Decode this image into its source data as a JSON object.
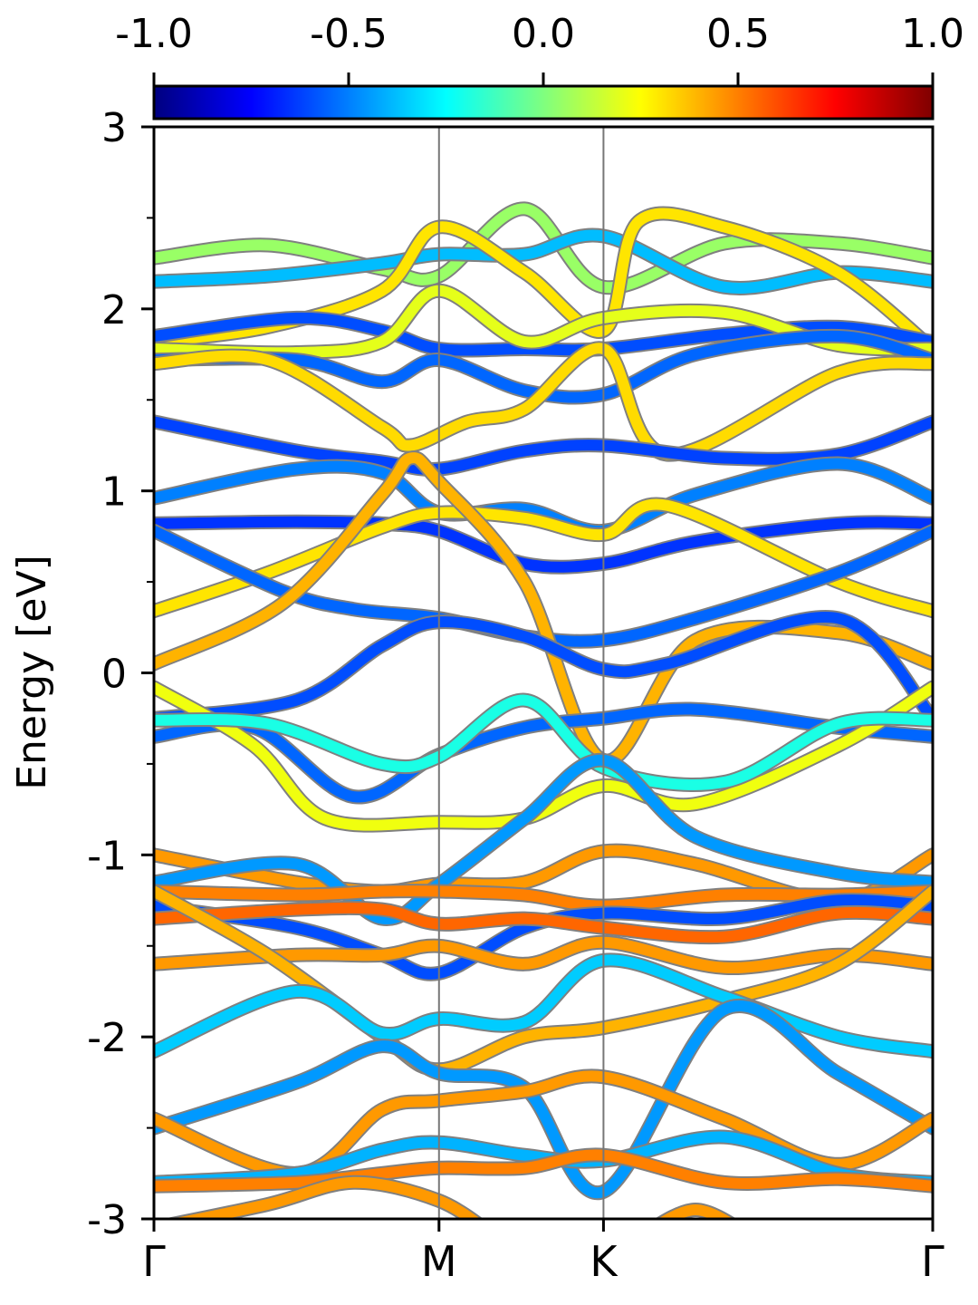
{
  "chart_data": {
    "type": "line",
    "title": "",
    "xlabel": "",
    "ylabel": "Energy [eV]",
    "ylim": [
      -3,
      3
    ],
    "grid": false,
    "kpath": {
      "labels": [
        "Γ",
        "M",
        "K",
        "Γ"
      ],
      "positions": [
        0,
        1,
        1.577,
        2.732
      ],
      "xlim": [
        0,
        2.732
      ]
    },
    "yticks": [
      -3,
      -2,
      -1,
      0,
      1,
      2,
      3
    ],
    "ytick_labels": [
      "-3",
      "-2",
      "-1",
      "0",
      "1",
      "2",
      "3"
    ],
    "colorbar": {
      "colormap": "jet",
      "range": [
        -1.0,
        1.0
      ],
      "ticks": [
        -1.0,
        -0.5,
        0.0,
        0.5,
        1.0
      ],
      "tick_labels": [
        "-1.0",
        "-0.5",
        "0.0",
        "0.5",
        "1.0"
      ],
      "stops": [
        "#00007f",
        "#0000ff",
        "#007fff",
        "#00ffff",
        "#7fff7f",
        "#ffff00",
        "#ff7f00",
        "#ff0000",
        "#7f0000"
      ]
    },
    "series": [
      {
        "x": [
          0,
          0.4,
          0.8,
          1,
          1.3,
          1.577,
          2,
          2.4,
          2.732
        ],
        "y": [
          2.28,
          2.35,
          2.22,
          2.18,
          2.55,
          2.12,
          2.36,
          2.36,
          2.28
        ],
        "w": 0.05
      },
      {
        "x": [
          0,
          0.4,
          0.8,
          1,
          1.3,
          1.577,
          2,
          2.4,
          2.732
        ],
        "y": [
          2.15,
          2.18,
          2.25,
          2.3,
          2.3,
          2.4,
          2.12,
          2.2,
          2.15
        ],
        "w": -0.38
      },
      {
        "x": [
          0,
          0.4,
          0.8,
          1,
          1.3,
          1.577,
          1.7,
          2,
          2.4,
          2.732
        ],
        "y": [
          1.82,
          1.9,
          2.1,
          2.45,
          2.2,
          1.88,
          2.48,
          2.45,
          2.2,
          1.78
        ],
        "w": 0.3
      },
      {
        "x": [
          0,
          0.5,
          0.8,
          1,
          1.3,
          1.577,
          2,
          2.4,
          2.732
        ],
        "y": [
          1.85,
          1.95,
          1.88,
          1.78,
          1.78,
          1.78,
          1.86,
          1.9,
          1.82
        ],
        "w": -0.6
      },
      {
        "x": [
          0,
          0.5,
          0.8,
          1,
          1.3,
          1.577,
          2,
          2.4,
          2.732
        ],
        "y": [
          1.78,
          1.76,
          1.82,
          2.1,
          1.82,
          1.95,
          1.98,
          1.8,
          1.78
        ],
        "w": 0.2
      },
      {
        "x": [
          0,
          0.5,
          0.8,
          1,
          1.3,
          1.577,
          1.9,
          2.4,
          2.732
        ],
        "y": [
          1.72,
          1.72,
          1.6,
          1.72,
          1.55,
          1.53,
          1.75,
          1.85,
          1.72
        ],
        "w": -0.55
      },
      {
        "x": [
          0,
          0.4,
          0.8,
          0.9,
          1.1,
          1.3,
          1.577,
          1.8,
          2.4,
          2.732
        ],
        "y": [
          1.7,
          1.72,
          1.35,
          1.25,
          1.38,
          1.45,
          1.78,
          1.2,
          1.65,
          1.7
        ],
        "w": 0.32
      },
      {
        "x": [
          0,
          0.5,
          0.8,
          1,
          1.3,
          1.577,
          2,
          2.4,
          2.732
        ],
        "y": [
          1.38,
          1.22,
          1.16,
          1.12,
          1.22,
          1.25,
          1.18,
          1.2,
          1.38
        ],
        "w": -0.62
      },
      {
        "x": [
          0,
          0.5,
          0.8,
          1,
          1.3,
          1.577,
          1.9,
          2.4,
          2.732
        ],
        "y": [
          0.96,
          1.12,
          1.1,
          0.88,
          0.9,
          0.78,
          0.98,
          1.15,
          0.96
        ],
        "w": -0.5
      },
      {
        "x": [
          0,
          0.5,
          0.8,
          1,
          1.3,
          1.577,
          1.9,
          2.4,
          2.732
        ],
        "y": [
          0.82,
          0.83,
          0.82,
          0.78,
          0.6,
          0.6,
          0.72,
          0.82,
          0.82
        ],
        "w": -0.65
      },
      {
        "x": [
          0,
          0.4,
          0.8,
          1,
          1.3,
          1.577,
          1.8,
          2.4,
          2.732
        ],
        "y": [
          0.34,
          0.55,
          0.8,
          0.88,
          0.85,
          0.76,
          0.92,
          0.5,
          0.34
        ],
        "w": 0.3
      },
      {
        "x": [
          0,
          0.45,
          0.7,
          1,
          1.3,
          1.577,
          1.9,
          2.4,
          2.732
        ],
        "y": [
          0.78,
          0.45,
          0.35,
          0.3,
          0.2,
          0.18,
          0.3,
          0.55,
          0.78
        ],
        "w": -0.55
      },
      {
        "x": [
          0,
          0.45,
          0.8,
          0.9,
          1,
          1.3,
          1.577,
          1.9,
          2.4,
          2.732
        ],
        "y": [
          0.05,
          0.38,
          0.98,
          1.18,
          1.05,
          0.5,
          -0.48,
          0.18,
          0.22,
          0.05
        ],
        "w": 0.4
      },
      {
        "x": [
          0,
          0.5,
          0.8,
          1,
          1.3,
          1.577,
          1.8,
          2.4,
          2.732
        ],
        "y": [
          -0.25,
          -0.15,
          0.15,
          0.28,
          0.2,
          0.02,
          0.05,
          0.3,
          -0.25
        ],
        "w": -0.6
      },
      {
        "x": [
          0,
          0.35,
          0.7,
          1,
          1.3,
          1.577,
          1.9,
          2.4,
          2.732
        ],
        "y": [
          -0.35,
          -0.3,
          -0.68,
          -0.45,
          -0.3,
          -0.25,
          -0.2,
          -0.3,
          -0.35
        ],
        "w": -0.55
      },
      {
        "x": [
          0,
          0.35,
          0.6,
          1,
          1.3,
          1.577,
          1.9,
          2.4,
          2.732
        ],
        "y": [
          -0.08,
          -0.4,
          -0.8,
          -0.82,
          -0.8,
          -0.62,
          -0.72,
          -0.4,
          -0.08
        ],
        "w": 0.22
      },
      {
        "x": [
          0,
          0.4,
          0.8,
          1,
          1.3,
          1.577,
          2,
          2.4,
          2.732
        ],
        "y": [
          -0.26,
          -0.28,
          -0.5,
          -0.46,
          -0.15,
          -0.52,
          -0.6,
          -0.28,
          -0.26
        ],
        "w": -0.2
      },
      {
        "x": [
          0,
          0.5,
          0.8,
          1,
          1.3,
          1.577,
          1.9,
          2.4,
          2.732
        ],
        "y": [
          -1.0,
          -1.15,
          -1.2,
          -1.16,
          -1.15,
          -0.98,
          -1.05,
          -1.25,
          -1.0
        ],
        "w": 0.45
      },
      {
        "x": [
          0,
          0.5,
          0.8,
          1,
          1.3,
          1.577,
          1.9,
          2.4,
          2.732
        ],
        "y": [
          -1.15,
          -1.05,
          -1.35,
          -1.16,
          -0.8,
          -0.48,
          -0.9,
          -1.1,
          -1.15
        ],
        "w": -0.45
      },
      {
        "x": [
          0,
          0.5,
          0.8,
          1,
          1.3,
          1.577,
          2,
          2.4,
          2.732
        ],
        "y": [
          -1.2,
          -1.22,
          -1.2,
          -1.2,
          -1.22,
          -1.28,
          -1.22,
          -1.22,
          -1.2
        ],
        "w": 0.5
      },
      {
        "x": [
          0,
          0.5,
          0.8,
          1,
          1.3,
          1.577,
          2,
          2.4,
          2.732
        ],
        "y": [
          -1.28,
          -1.4,
          -1.55,
          -1.65,
          -1.4,
          -1.32,
          -1.35,
          -1.25,
          -1.28
        ],
        "w": -0.6
      },
      {
        "x": [
          0,
          0.5,
          0.8,
          1,
          1.3,
          1.577,
          2,
          2.4,
          2.732
        ],
        "y": [
          -1.35,
          -1.3,
          -1.3,
          -1.38,
          -1.35,
          -1.4,
          -1.45,
          -1.32,
          -1.35
        ],
        "w": 0.55
      },
      {
        "x": [
          0,
          0.5,
          0.8,
          1,
          1.3,
          1.577,
          2,
          2.4,
          2.732
        ],
        "y": [
          -1.6,
          -1.55,
          -1.55,
          -1.5,
          -1.6,
          -1.48,
          -1.62,
          -1.55,
          -1.6
        ],
        "w": 0.45
      },
      {
        "x": [
          0,
          0.4,
          0.8,
          1,
          1.3,
          1.577,
          2,
          2.4,
          2.732
        ],
        "y": [
          -1.2,
          -1.55,
          -2.0,
          -2.18,
          -2.0,
          -1.95,
          -1.8,
          -1.6,
          -1.2
        ],
        "w": 0.4
      },
      {
        "x": [
          0,
          0.5,
          0.8,
          1,
          1.3,
          1.577,
          2,
          2.4,
          2.732
        ],
        "y": [
          -2.08,
          -1.75,
          -1.98,
          -1.9,
          -1.92,
          -1.58,
          -1.78,
          -2.0,
          -2.08
        ],
        "w": -0.35
      },
      {
        "x": [
          0,
          0.5,
          0.8,
          1,
          1.3,
          1.577,
          2,
          2.4,
          2.732
        ],
        "y": [
          -2.5,
          -2.25,
          -2.05,
          -2.2,
          -2.28,
          -2.85,
          -1.85,
          -2.2,
          -2.5
        ],
        "w": -0.45
      },
      {
        "x": [
          0,
          0.5,
          0.8,
          1,
          1.3,
          1.577,
          2,
          2.4,
          2.732
        ],
        "y": [
          -2.45,
          -2.75,
          -2.4,
          -2.35,
          -2.3,
          -2.22,
          -2.45,
          -2.7,
          -2.45
        ],
        "w": 0.45
      },
      {
        "x": [
          0,
          0.5,
          0.8,
          1,
          1.3,
          1.577,
          2,
          2.4,
          2.732
        ],
        "y": [
          -2.8,
          -2.75,
          -2.62,
          -2.58,
          -2.65,
          -2.68,
          -2.55,
          -2.75,
          -2.8
        ],
        "w": -0.4
      },
      {
        "x": [
          0,
          0.5,
          0.8,
          1,
          1.3,
          1.577,
          2,
          2.4,
          2.732
        ],
        "y": [
          -2.82,
          -2.8,
          -2.75,
          -2.72,
          -2.72,
          -2.65,
          -2.8,
          -2.78,
          -2.82
        ],
        "w": 0.5
      },
      {
        "x": [
          0,
          0.4,
          0.7,
          1,
          1.2
        ],
        "y": [
          -3.05,
          -2.92,
          -2.8,
          -2.9,
          -3.1
        ],
        "w": 0.45
      },
      {
        "x": [
          1.7,
          1.9,
          2.1
        ],
        "y": [
          -3.1,
          -2.95,
          -3.1
        ],
        "w": 0.45
      }
    ]
  }
}
